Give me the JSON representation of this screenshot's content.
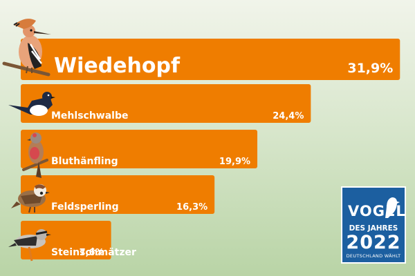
{
  "chart_data": {
    "type": "bar",
    "orientation": "horizontal",
    "categories": [
      "Wiedehopf",
      "Mehlschwalbe",
      "Bluthänfling",
      "Feldsperling",
      "Steinschmätzer"
    ],
    "values": [
      31.9,
      24.4,
      19.9,
      16.3,
      7.6
    ],
    "value_labels": [
      "31,9%",
      "24,4%",
      "19,9%",
      "16,3%",
      "7,6%"
    ],
    "unit": "%",
    "xlim": [
      0,
      32
    ],
    "grid": false,
    "legend": "none"
  },
  "badge": {
    "line1": "VOGEL",
    "line2": "DES JAHRES",
    "year": "2022",
    "line3": "DEUTSCHLAND WÄHLT"
  },
  "colors": {
    "bar": "#ef7d00",
    "badge": "#1c5fa0",
    "background_top": "#f1f4ea",
    "background_bottom": "#b9d4a6"
  },
  "icons": [
    "hoopoe-icon",
    "house-martin-icon",
    "linnet-icon",
    "tree-sparrow-icon",
    "wheatear-icon",
    "badge-bird-icon"
  ]
}
